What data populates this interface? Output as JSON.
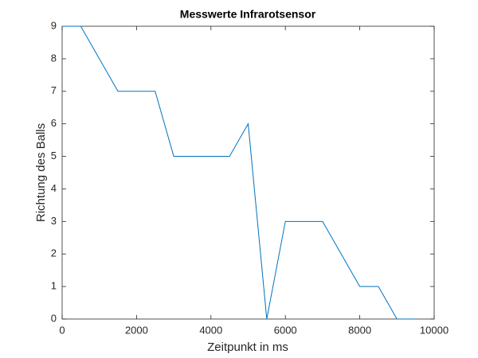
{
  "chart_data": {
    "type": "line",
    "title": "Messwerte Infrarotsensor",
    "x_label": "Zeitpunkt in ms",
    "y_label": "Richtung des Balls",
    "x": [
      0,
      500,
      1500,
      2500,
      3000,
      4500,
      5000,
      5500,
      6000,
      7000,
      8000,
      8500,
      9000,
      9500
    ],
    "series": [
      {
        "color": "#0072bd",
        "values": [
          9,
          9,
          7,
          7,
          5,
          5,
          6,
          0,
          3,
          3,
          1,
          1,
          0,
          0
        ]
      }
    ],
    "xlim": [
      0,
      10000
    ],
    "ylim": [
      0,
      9
    ],
    "xticks": [
      0,
      2000,
      4000,
      6000,
      8000,
      10000
    ],
    "yticks": [
      0,
      1,
      2,
      3,
      4,
      5,
      6,
      7,
      8,
      9
    ],
    "grid": false
  }
}
